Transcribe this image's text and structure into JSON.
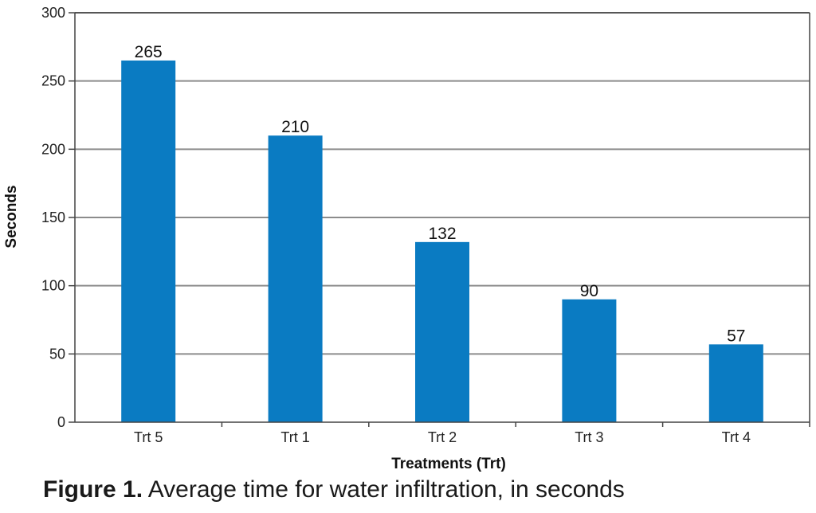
{
  "chart_data": {
    "type": "bar",
    "categories": [
      "Trt 5",
      "Trt 1",
      "Trt 2",
      "Trt 3",
      "Trt 4"
    ],
    "values": [
      265,
      210,
      132,
      90,
      57
    ],
    "data_labels": [
      "265",
      "210",
      "132",
      "90",
      "57"
    ],
    "xlabel": "Treatments (Trt)",
    "ylabel": "Seconds",
    "ylim": [
      0,
      300
    ],
    "yticks": [
      0,
      50,
      100,
      150,
      200,
      250,
      300
    ],
    "grid": true,
    "bar_color": "#0a7bc2",
    "grid_color": "#8c8c8c"
  },
  "caption": {
    "figure_number": "Figure 1.",
    "text": " Average time for water infiltration, in seconds"
  }
}
